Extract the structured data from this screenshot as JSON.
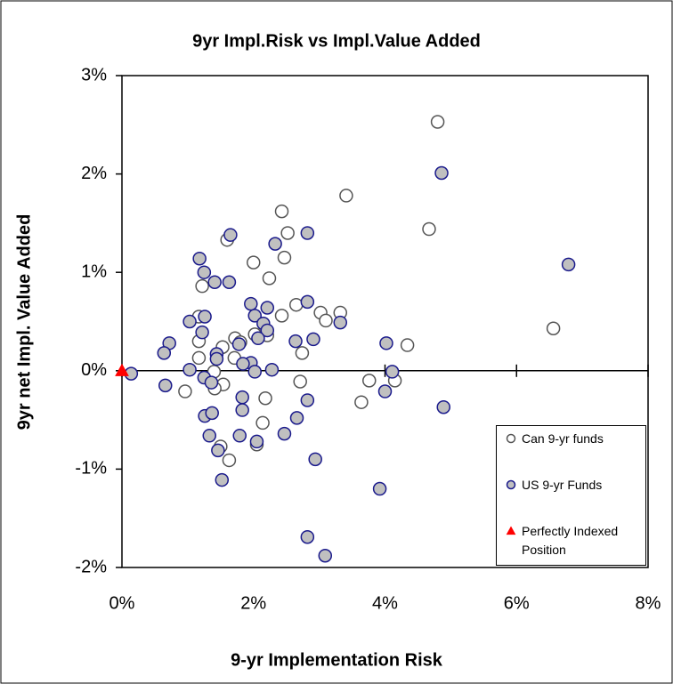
{
  "chart_data": {
    "type": "scatter",
    "title": "9yr Impl.Risk vs Impl.Value Added",
    "xlabel": "9-yr Implementation Risk",
    "ylabel": "9yr net Impl. Value Added",
    "xlim": [
      0,
      8
    ],
    "ylim": [
      -2,
      3
    ],
    "xticks": [
      {
        "value": 0,
        "label": "0%"
      },
      {
        "value": 2,
        "label": "2%"
      },
      {
        "value": 4,
        "label": "4%"
      },
      {
        "value": 6,
        "label": "6%"
      },
      {
        "value": 8,
        "label": "8%"
      }
    ],
    "yticks": [
      {
        "value": -2,
        "label": "-2%"
      },
      {
        "value": -1,
        "label": "-1%"
      },
      {
        "value": 0,
        "label": "0%"
      },
      {
        "value": 1,
        "label": "1%"
      },
      {
        "value": 2,
        "label": "2%"
      },
      {
        "value": 3,
        "label": "3%"
      }
    ],
    "grid": false,
    "legend": "lower right",
    "series": [
      {
        "name": "Can 9-yr funds",
        "marker": "circle",
        "color": "#ffffff",
        "edgecolor": "#555555",
        "x": [
          4.8,
          3.41,
          4.67,
          2.43,
          2.52,
          1.6,
          2.47,
          2.0,
          2.24,
          1.22,
          2.65,
          2.43,
          3.02,
          3.32,
          3.1,
          1.17,
          1.17,
          1.72,
          2.02,
          2.21,
          1.8,
          1.53,
          4.34,
          6.56,
          1.17,
          1.71,
          2.74,
          1.4,
          0.96,
          1.54,
          1.41,
          2.71,
          3.64,
          3.76,
          4.15,
          2.18,
          2.14,
          1.5,
          1.63,
          2.05
        ],
        "values": [
          2.53,
          1.78,
          1.44,
          1.62,
          1.4,
          1.33,
          1.15,
          1.1,
          0.94,
          0.86,
          0.67,
          0.56,
          0.59,
          0.59,
          0.51,
          0.55,
          0.3,
          0.33,
          0.37,
          0.36,
          0.29,
          0.24,
          0.26,
          0.43,
          0.13,
          0.13,
          0.18,
          -0.01,
          -0.21,
          -0.14,
          -0.18,
          -0.11,
          -0.32,
          -0.1,
          -0.1,
          -0.28,
          -0.53,
          -0.77,
          -0.91,
          -0.75
        ]
      },
      {
        "name": "US 9-yr Funds",
        "marker": "circle",
        "color": "#c0c0c0",
        "edgecolor": "#1a1a8c",
        "x": [
          4.86,
          6.79,
          1.65,
          2.82,
          2.33,
          1.18,
          1.25,
          1.41,
          1.63,
          1.96,
          2.82,
          1.26,
          1.03,
          2.02,
          2.21,
          2.15,
          3.32,
          1.22,
          0.72,
          0.64,
          2.21,
          2.07,
          2.64,
          2.91,
          1.78,
          4.02,
          1.44,
          1.44,
          1.96,
          1.84,
          2.02,
          2.28,
          1.03,
          0.14,
          0.66,
          1.25,
          1.36,
          4.11,
          4.0,
          4.89,
          1.83,
          1.83,
          2.66,
          2.82,
          1.26,
          1.37,
          1.33,
          1.79,
          2.47,
          1.46,
          2.05,
          2.94,
          1.52,
          3.92,
          2.82,
          3.09
        ],
        "values": [
          2.01,
          1.08,
          1.38,
          1.4,
          1.29,
          1.14,
          1.0,
          0.9,
          0.9,
          0.68,
          0.7,
          0.55,
          0.5,
          0.56,
          0.64,
          0.48,
          0.49,
          0.39,
          0.28,
          0.18,
          0.41,
          0.33,
          0.3,
          0.32,
          0.27,
          0.28,
          0.17,
          0.12,
          0.08,
          0.07,
          -0.01,
          0.01,
          0.01,
          -0.03,
          -0.15,
          -0.07,
          -0.12,
          -0.01,
          -0.21,
          -0.37,
          -0.27,
          -0.4,
          -0.48,
          -0.3,
          -0.46,
          -0.43,
          -0.66,
          -0.66,
          -0.64,
          -0.81,
          -0.72,
          -0.9,
          -1.11,
          -1.2,
          -1.69,
          -1.88
        ]
      },
      {
        "name": "Perfectly Indexed Position",
        "marker": "triangle",
        "color": "#ff0000",
        "edgecolor": "#ff0000",
        "x": [
          0
        ],
        "values": [
          0
        ]
      }
    ]
  }
}
